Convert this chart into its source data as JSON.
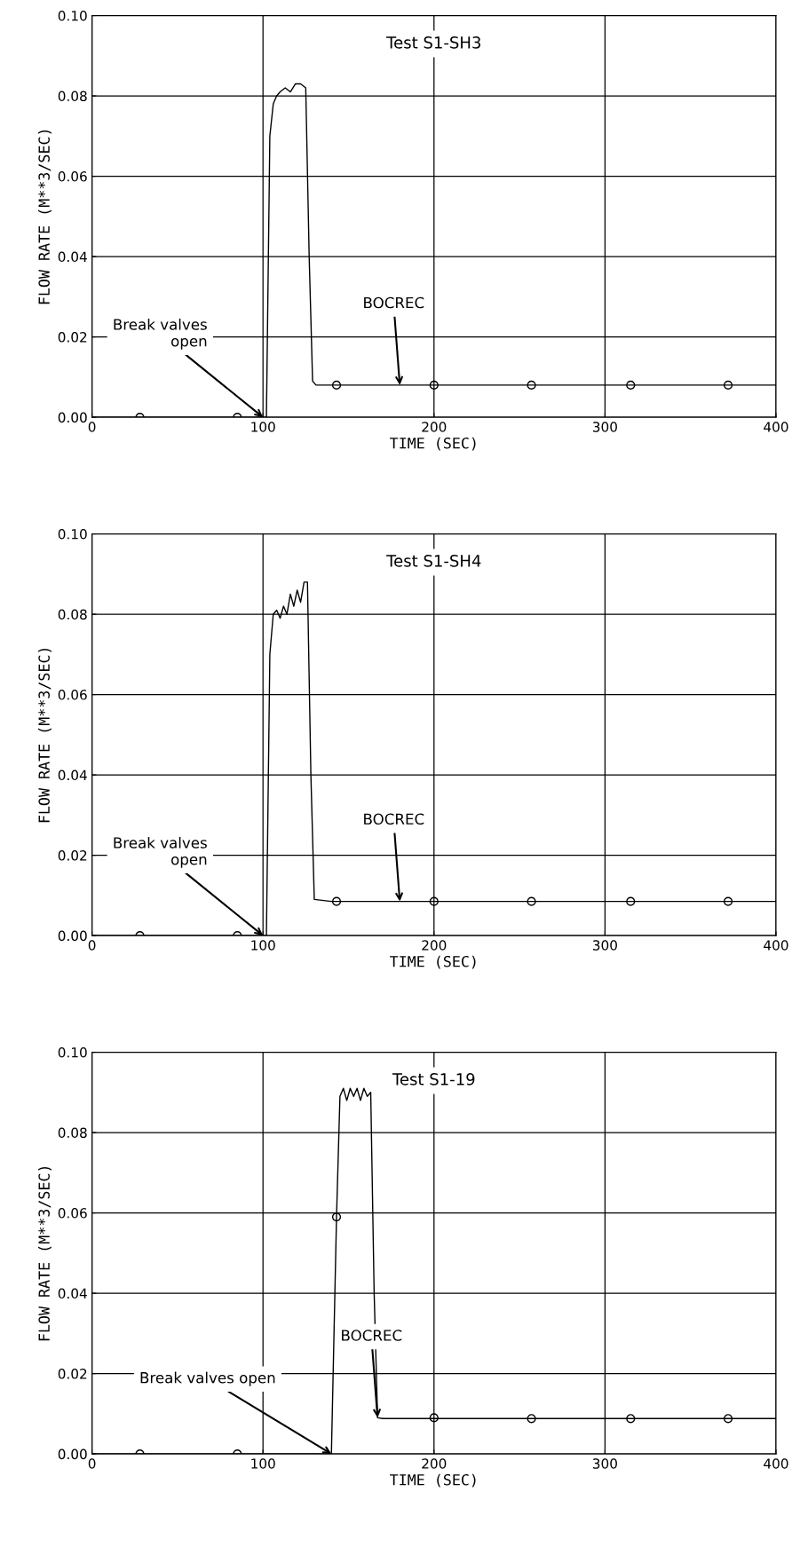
{
  "chart_data": [
    {
      "type": "line",
      "title": "Test S1-SH3",
      "xlabel": "TIME (SEC)",
      "ylabel": "FLOW RATE (M**3/SEC)",
      "xlim": [
        0,
        400
      ],
      "ylim": [
        0,
        0.1
      ],
      "xticks": [
        0,
        100,
        200,
        300,
        400
      ],
      "yticks": [
        {
          "value": 0,
          "label": "0.00"
        },
        {
          "value": 0.02,
          "label": "0.02"
        },
        {
          "value": 0.04,
          "label": "0.04"
        },
        {
          "value": 0.06,
          "label": "0.06"
        },
        {
          "value": 0.08,
          "label": "0.08"
        },
        {
          "value": 0.1,
          "label": "0.10"
        }
      ],
      "grid": true,
      "series": [
        {
          "color": "#000000",
          "x": [
            0,
            102,
            104,
            106,
            108,
            110,
            113,
            116,
            119,
            122,
            125,
            127,
            129,
            131,
            140,
            200,
            260,
            320,
            400
          ],
          "values": [
            0,
            0,
            0.07,
            0.078,
            0.08,
            0.081,
            0.082,
            0.081,
            0.083,
            0.083,
            0.082,
            0.04,
            0.009,
            0.008,
            0.008,
            0.008,
            0.008,
            0.008,
            0.008
          ]
        },
        {
          "type": "scatter",
          "marker": "circle",
          "color": "#000000",
          "x": [
            28,
            85,
            143,
            200,
            257,
            315,
            372
          ],
          "values": [
            0,
            0,
            0.008,
            0.008,
            0.008,
            0.008,
            0.008
          ]
        }
      ],
      "annotations": [
        {
          "text": "Break valves\nopen",
          "x": 100,
          "y": 0
        },
        {
          "text": "BOCREC",
          "x": 180,
          "y": 0.008
        }
      ]
    },
    {
      "type": "line",
      "title": "Test S1-SH4",
      "xlabel": "TIME (SEC)",
      "ylabel": "FLOW RATE (M**3/SEC)",
      "xlim": [
        0,
        400
      ],
      "ylim": [
        0,
        0.1
      ],
      "xticks": [
        0,
        100,
        200,
        300,
        400
      ],
      "yticks": [
        {
          "value": 0,
          "label": "0.00"
        },
        {
          "value": 0.02,
          "label": "0.02"
        },
        {
          "value": 0.04,
          "label": "0.04"
        },
        {
          "value": 0.06,
          "label": "0.06"
        },
        {
          "value": 0.08,
          "label": "0.08"
        },
        {
          "value": 0.1,
          "label": "0.10"
        }
      ],
      "grid": true,
      "series": [
        {
          "color": "#000000",
          "x": [
            0,
            102,
            104,
            106,
            108,
            110,
            112,
            114,
            116,
            118,
            120,
            122,
            124,
            126,
            128,
            130,
            140,
            200,
            260,
            320,
            400
          ],
          "values": [
            0,
            0,
            0.07,
            0.08,
            0.081,
            0.079,
            0.082,
            0.08,
            0.085,
            0.082,
            0.086,
            0.083,
            0.088,
            0.088,
            0.04,
            0.009,
            0.0085,
            0.0085,
            0.0085,
            0.0085,
            0.0085
          ]
        },
        {
          "type": "scatter",
          "marker": "circle",
          "color": "#000000",
          "x": [
            28,
            85,
            143,
            200,
            257,
            315,
            372
          ],
          "values": [
            0,
            0,
            0.0085,
            0.0085,
            0.0085,
            0.0085,
            0.0085
          ]
        }
      ],
      "annotations": [
        {
          "text": "Break valves\nopen",
          "x": 100,
          "y": 0
        },
        {
          "text": "BOCREC",
          "x": 180,
          "y": 0.0085
        }
      ]
    },
    {
      "type": "line",
      "title": "Test S1-19",
      "xlabel": "TIME (SEC)",
      "ylabel": "FLOW RATE (M**3/SEC)",
      "xlim": [
        0,
        400
      ],
      "ylim": [
        0,
        0.1
      ],
      "xticks": [
        0,
        100,
        200,
        300,
        400
      ],
      "yticks": [
        {
          "value": 0,
          "label": "0.00"
        },
        {
          "value": 0.02,
          "label": "0.02"
        },
        {
          "value": 0.04,
          "label": "0.04"
        },
        {
          "value": 0.06,
          "label": "0.06"
        },
        {
          "value": 0.08,
          "label": "0.08"
        },
        {
          "value": 0.1,
          "label": "0.10"
        }
      ],
      "grid": true,
      "series": [
        {
          "color": "#000000",
          "x": [
            0,
            140,
            143,
            145,
            147,
            149,
            151,
            153,
            155,
            157,
            159,
            161,
            163,
            165,
            167,
            170,
            200,
            260,
            320,
            400
          ],
          "values": [
            0,
            0,
            0.059,
            0.089,
            0.091,
            0.088,
            0.091,
            0.089,
            0.091,
            0.088,
            0.091,
            0.089,
            0.09,
            0.04,
            0.009,
            0.0088,
            0.0088,
            0.0088,
            0.0088,
            0.0088
          ]
        },
        {
          "type": "scatter",
          "marker": "circle",
          "color": "#000000",
          "x": [
            28,
            85,
            143,
            200,
            257,
            315,
            372
          ],
          "values": [
            0,
            0,
            0.059,
            0.009,
            0.0088,
            0.0088,
            0.0088
          ]
        }
      ],
      "annotations": [
        {
          "text": "Break valves open",
          "x": 140,
          "y": 0
        },
        {
          "text": "BOCREC",
          "x": 167,
          "y": 0.009
        }
      ]
    }
  ]
}
